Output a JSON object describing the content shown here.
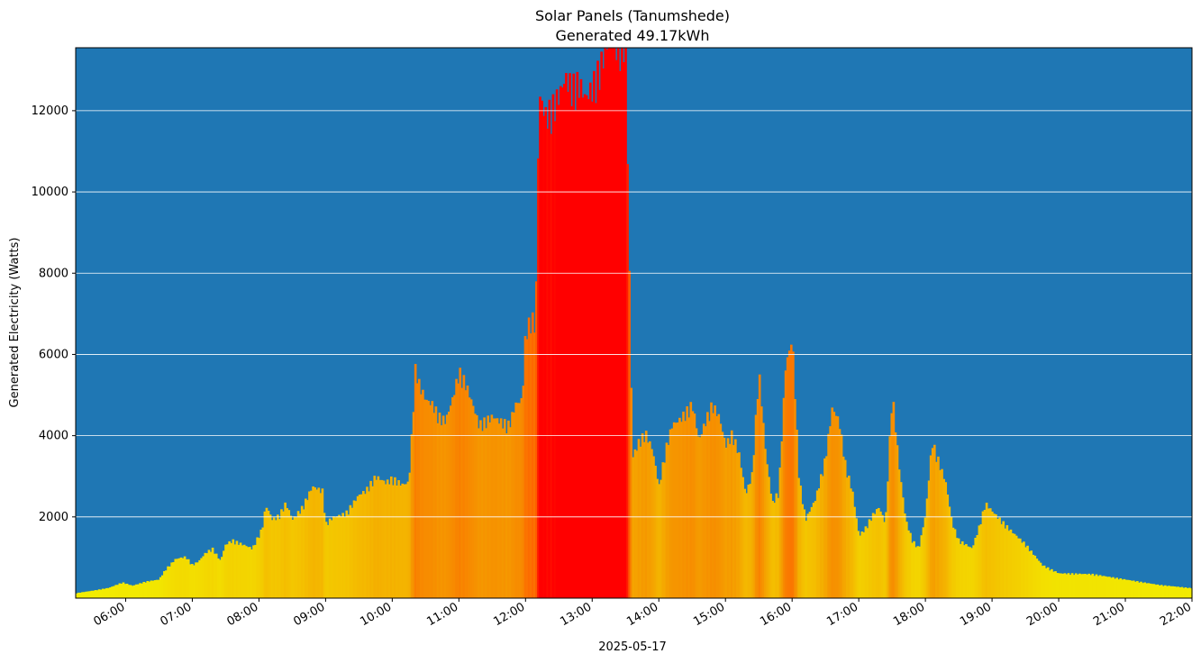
{
  "chart_data": {
    "type": "bar",
    "title": "Solar Panels (Tanumshede)",
    "subtitle": "Generated 49.17kWh",
    "xlabel": "2025-05-17",
    "ylabel": "Generated Electricity (Watts)",
    "x_ticks": [
      "06:00",
      "07:00",
      "08:00",
      "09:00",
      "10:00",
      "11:00",
      "12:00",
      "13:00",
      "14:00",
      "15:00",
      "16:00",
      "17:00",
      "18:00",
      "19:00",
      "20:00",
      "21:00",
      "22:00"
    ],
    "y_ticks": [
      2000,
      4000,
      6000,
      8000,
      10000,
      12000
    ],
    "xlim_hours": [
      5.25,
      22.0
    ],
    "ylim": [
      0,
      13550
    ],
    "grid": "horizontal",
    "colors": {
      "plot_bg": "#1f77b4",
      "low": "#f2f000",
      "mid": "#f59a00",
      "high": "#ff0000",
      "grid": "#ffffff"
    },
    "color_scale": "yellow at 0 W through orange to red at 12000 W and above",
    "profile_hours": [
      5.25,
      5.5,
      5.75,
      5.95,
      6.1,
      6.3,
      6.5,
      6.6,
      6.75,
      6.9,
      7.0,
      7.1,
      7.2,
      7.3,
      7.42,
      7.5,
      7.6,
      7.75,
      7.9,
      8.05,
      8.1,
      8.2,
      8.3,
      8.4,
      8.5,
      8.65,
      8.8,
      8.95,
      9.0,
      9.1,
      9.3,
      9.5,
      9.6,
      9.75,
      9.9,
      10.0,
      10.15,
      10.25,
      10.3,
      10.35,
      10.4,
      10.5,
      10.6,
      10.7,
      10.8,
      10.9,
      11.0,
      11.1,
      11.3,
      11.5,
      11.6,
      11.75,
      11.85,
      11.95,
      12.0,
      12.1,
      12.15,
      12.2,
      12.3,
      12.4,
      12.5,
      12.6,
      12.7,
      12.8,
      12.9,
      13.0,
      13.1,
      13.2,
      13.3,
      13.5,
      13.6,
      13.7,
      13.8,
      13.9,
      14.0,
      14.1,
      14.2,
      14.3,
      14.4,
      14.5,
      14.6,
      14.7,
      14.8,
      14.9,
      15.0,
      15.1,
      15.2,
      15.3,
      15.4,
      15.5,
      15.6,
      15.7,
      15.8,
      15.9,
      16.0,
      16.1,
      16.2,
      16.35,
      16.5,
      16.6,
      16.7,
      16.8,
      16.9,
      17.0,
      17.1,
      17.2,
      17.3,
      17.4,
      17.5,
      17.6,
      17.7,
      17.8,
      17.9,
      18.0,
      18.1,
      18.2,
      18.3,
      18.4,
      18.5,
      18.6,
      18.7,
      18.8,
      18.9,
      19.0,
      19.3,
      19.5,
      19.75,
      20.0,
      20.5,
      21.0,
      21.5,
      22.0
    ],
    "profile_watts": [
      120,
      180,
      250,
      380,
      300,
      400,
      450,
      700,
      950,
      1000,
      800,
      900,
      1100,
      1200,
      900,
      1300,
      1400,
      1300,
      1200,
      1700,
      2250,
      1900,
      2000,
      2300,
      1900,
      2200,
      2700,
      2600,
      1800,
      1950,
      2050,
      2500,
      2600,
      2950,
      2800,
      2900,
      2750,
      2800,
      4200,
      5700,
      5200,
      4800,
      4700,
      4400,
      4300,
      4800,
      5500,
      5200,
      4200,
      4400,
      4300,
      4200,
      4700,
      4800,
      6500,
      6800,
      6500,
      12200,
      11700,
      11900,
      12200,
      12600,
      12400,
      12500,
      12100,
      12400,
      12800,
      13300,
      13600,
      13400,
      3400,
      3800,
      4000,
      3600,
      2700,
      3600,
      4200,
      4300,
      4500,
      4700,
      3800,
      4300,
      4700,
      4400,
      3700,
      4000,
      3500,
      2500,
      3000,
      5500,
      3500,
      2300,
      2600,
      5600,
      6300,
      2900,
      1900,
      2400,
      3400,
      4600,
      4300,
      3200,
      2600,
      1500,
      1700,
      2000,
      2200,
      1800,
      5000,
      3200,
      1900,
      1400,
      1200,
      2000,
      3800,
      3300,
      2800,
      1800,
      1400,
      1300,
      1200,
      1700,
      2300,
      2100,
      1600,
      1300,
      800,
      600,
      580,
      450,
      320,
      240,
      150,
      60
    ]
  }
}
